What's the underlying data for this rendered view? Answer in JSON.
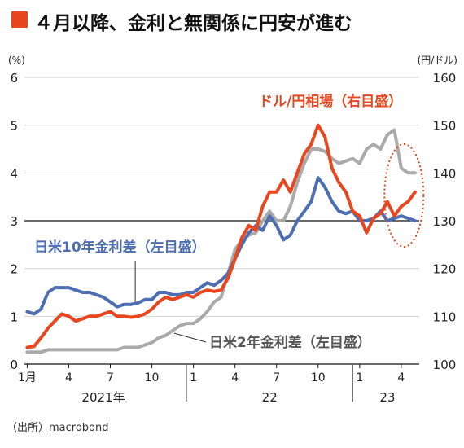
{
  "title": "４月以降、金利と無関係に円安が進む",
  "source": "（出所）macrobond",
  "colors": {
    "title_mark": "#e8461e",
    "usdjpy": "#e8461e",
    "spread10": "#4e6eb2",
    "spread2": "#aaaaaa",
    "highlight_circle": "#e8461e"
  },
  "chart_data": {
    "type": "line",
    "left_axis": {
      "unit_label": "(%)",
      "ylim": [
        0,
        6
      ],
      "ticks": [
        "0",
        "1",
        "2",
        "3",
        "4",
        "5",
        "6"
      ]
    },
    "right_axis": {
      "unit_label": "(円/ドル)",
      "ylim": [
        100,
        160
      ],
      "ticks": [
        "100",
        "110",
        "120",
        "130",
        "140",
        "150",
        "160"
      ]
    },
    "x_axis": {
      "month_ticks": [
        {
          "label": "1月",
          "x": 0
        },
        {
          "label": "4",
          "x": 3
        },
        {
          "label": "7",
          "x": 6
        },
        {
          "label": "10",
          "x": 9
        },
        {
          "label": "1",
          "x": 12
        },
        {
          "label": "4",
          "x": 15
        },
        {
          "label": "7",
          "x": 18
        },
        {
          "label": "10",
          "x": 21
        },
        {
          "label": "1",
          "x": 24
        },
        {
          "label": "4",
          "x": 27
        }
      ],
      "year_labels": [
        {
          "label": "2021年",
          "x": 5.5
        },
        {
          "label": "22",
          "x": 17.5
        },
        {
          "label": "23",
          "x": 26
        }
      ],
      "year_dividers": [
        11.5,
        23.5
      ],
      "xlim": [
        -0.2,
        28.3
      ]
    },
    "reference_line": {
      "y_left": 3
    },
    "series": [
      {
        "name": "ドル/円相場（右目盛）",
        "axis": "right",
        "points": [
          [
            0,
            103.5
          ],
          [
            0.5,
            103.7
          ],
          [
            1,
            105.5
          ],
          [
            1.5,
            107.5
          ],
          [
            2,
            109
          ],
          [
            2.5,
            110.5
          ],
          [
            3,
            110
          ],
          [
            3.5,
            109
          ],
          [
            4,
            109.5
          ],
          [
            4.5,
            110
          ],
          [
            5,
            110
          ],
          [
            5.5,
            110.5
          ],
          [
            6,
            111
          ],
          [
            6.5,
            110
          ],
          [
            7,
            110
          ],
          [
            7.5,
            109.8
          ],
          [
            8,
            110
          ],
          [
            8.5,
            110.5
          ],
          [
            9,
            111.5
          ],
          [
            9.5,
            113
          ],
          [
            10,
            114
          ],
          [
            10.5,
            113.5
          ],
          [
            11,
            114
          ],
          [
            11.5,
            114.5
          ],
          [
            12,
            114
          ],
          [
            12.5,
            115
          ],
          [
            13,
            115.5
          ],
          [
            13.5,
            115.2
          ],
          [
            14,
            115.5
          ],
          [
            14.5,
            118
          ],
          [
            15,
            122
          ],
          [
            15.5,
            126.5
          ],
          [
            16,
            129
          ],
          [
            16.5,
            128
          ],
          [
            17,
            133
          ],
          [
            17.5,
            136
          ],
          [
            18,
            136
          ],
          [
            18.5,
            138.5
          ],
          [
            19,
            136
          ],
          [
            19.5,
            140
          ],
          [
            20,
            144
          ],
          [
            20.5,
            146
          ],
          [
            21,
            150
          ],
          [
            21.5,
            147.5
          ],
          [
            22,
            141
          ],
          [
            22.5,
            138
          ],
          [
            23,
            136
          ],
          [
            23.5,
            132
          ],
          [
            24,
            131
          ],
          [
            24.5,
            127.5
          ],
          [
            25,
            130.5
          ],
          [
            25.5,
            131.5
          ],
          [
            26,
            134
          ],
          [
            26.5,
            131
          ],
          [
            27,
            133
          ],
          [
            27.5,
            134
          ],
          [
            28,
            136
          ]
        ]
      },
      {
        "name": "日米10年金利差（左目盛）",
        "axis": "left",
        "points": [
          [
            0,
            1.1
          ],
          [
            0.5,
            1.05
          ],
          [
            1,
            1.15
          ],
          [
            1.5,
            1.5
          ],
          [
            2,
            1.6
          ],
          [
            2.5,
            1.6
          ],
          [
            3,
            1.6
          ],
          [
            3.5,
            1.55
          ],
          [
            4,
            1.5
          ],
          [
            4.5,
            1.5
          ],
          [
            5,
            1.45
          ],
          [
            5.5,
            1.4
          ],
          [
            6,
            1.3
          ],
          [
            6.5,
            1.2
          ],
          [
            7,
            1.25
          ],
          [
            7.5,
            1.25
          ],
          [
            8,
            1.28
          ],
          [
            8.5,
            1.35
          ],
          [
            9,
            1.35
          ],
          [
            9.5,
            1.5
          ],
          [
            10,
            1.5
          ],
          [
            10.5,
            1.45
          ],
          [
            11,
            1.45
          ],
          [
            11.5,
            1.5
          ],
          [
            12,
            1.5
          ],
          [
            12.5,
            1.6
          ],
          [
            13,
            1.7
          ],
          [
            13.5,
            1.65
          ],
          [
            14,
            1.75
          ],
          [
            14.5,
            1.9
          ],
          [
            15,
            2.2
          ],
          [
            15.5,
            2.5
          ],
          [
            16,
            2.75
          ],
          [
            16.5,
            2.9
          ],
          [
            17,
            2.8
          ],
          [
            17.5,
            3.1
          ],
          [
            18,
            2.9
          ],
          [
            18.5,
            2.6
          ],
          [
            19,
            2.7
          ],
          [
            19.5,
            3.0
          ],
          [
            20,
            3.2
          ],
          [
            20.5,
            3.4
          ],
          [
            21,
            3.9
          ],
          [
            21.5,
            3.7
          ],
          [
            22,
            3.4
          ],
          [
            22.5,
            3.2
          ],
          [
            23,
            3.15
          ],
          [
            23.5,
            3.2
          ],
          [
            24,
            3.0
          ],
          [
            24.5,
            3.0
          ],
          [
            25,
            3.05
          ],
          [
            25.5,
            3.2
          ],
          [
            26,
            3.0
          ],
          [
            26.5,
            3.05
          ],
          [
            27,
            3.1
          ],
          [
            27.5,
            3.05
          ],
          [
            28,
            3.0
          ]
        ]
      },
      {
        "name": "日米2年金利差（左目盛）",
        "axis": "left",
        "points": [
          [
            0,
            0.25
          ],
          [
            0.5,
            0.25
          ],
          [
            1,
            0.25
          ],
          [
            1.5,
            0.3
          ],
          [
            2,
            0.3
          ],
          [
            2.5,
            0.3
          ],
          [
            3,
            0.3
          ],
          [
            3.5,
            0.3
          ],
          [
            4,
            0.3
          ],
          [
            4.5,
            0.3
          ],
          [
            5,
            0.3
          ],
          [
            5.5,
            0.3
          ],
          [
            6,
            0.3
          ],
          [
            6.5,
            0.3
          ],
          [
            7,
            0.35
          ],
          [
            7.5,
            0.35
          ],
          [
            8,
            0.35
          ],
          [
            8.5,
            0.4
          ],
          [
            9,
            0.45
          ],
          [
            9.5,
            0.55
          ],
          [
            10,
            0.6
          ],
          [
            10.5,
            0.7
          ],
          [
            11,
            0.8
          ],
          [
            11.5,
            0.85
          ],
          [
            12,
            0.85
          ],
          [
            12.5,
            0.95
          ],
          [
            13,
            1.1
          ],
          [
            13.5,
            1.3
          ],
          [
            14,
            1.4
          ],
          [
            14.5,
            1.9
          ],
          [
            15,
            2.4
          ],
          [
            15.5,
            2.6
          ],
          [
            16,
            2.7
          ],
          [
            16.5,
            2.75
          ],
          [
            17,
            3.0
          ],
          [
            17.5,
            3.2
          ],
          [
            18,
            3.0
          ],
          [
            18.5,
            3.0
          ],
          [
            19,
            3.3
          ],
          [
            19.5,
            3.8
          ],
          [
            20,
            4.2
          ],
          [
            20.5,
            4.5
          ],
          [
            21,
            4.5
          ],
          [
            21.5,
            4.45
          ],
          [
            22,
            4.3
          ],
          [
            22.5,
            4.2
          ],
          [
            23,
            4.25
          ],
          [
            23.5,
            4.3
          ],
          [
            24,
            4.2
          ],
          [
            24.5,
            4.5
          ],
          [
            25,
            4.6
          ],
          [
            25.5,
            4.5
          ],
          [
            26,
            4.8
          ],
          [
            26.5,
            4.9
          ],
          [
            27,
            4.1
          ],
          [
            27.5,
            4.0
          ],
          [
            28,
            4.0
          ]
        ]
      }
    ],
    "annotations": [
      {
        "text": "ドル/円相場（右目盛）",
        "series": 0
      },
      {
        "text": "日米10年金利差（左目盛）",
        "series": 1
      },
      {
        "text": "日米2年金利差（左目盛）",
        "series": 2
      }
    ]
  }
}
